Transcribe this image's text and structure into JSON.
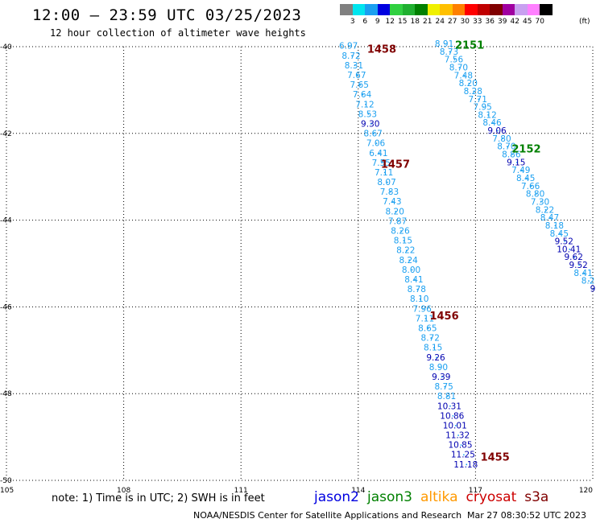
{
  "header": {
    "title": "12:00 — 23:59 UTC 03/25/2023",
    "subtitle": "12 hour collection of altimeter wave heights"
  },
  "legend": {
    "unit": "(ft)",
    "levels": [
      "3",
      "6",
      "9",
      "12",
      "15",
      "18",
      "21",
      "24",
      "27",
      "30",
      "33",
      "36",
      "39",
      "42",
      "45",
      "70"
    ],
    "colors": [
      "#808080",
      "#00e5ee",
      "#1a9ff0",
      "#0000e0",
      "#30d040",
      "#20b030",
      "#008000",
      "#f0f000",
      "#ffc000",
      "#ff8000",
      "#ff0000",
      "#c00000",
      "#800000",
      "#a000a0",
      "#c8a0f0",
      "#ff80ff",
      "#000000"
    ]
  },
  "footer": {
    "note": "note:  1) Time is in UTC;  2) SWH is in feet",
    "missions": [
      {
        "name": "jason2",
        "color": "#0000e0"
      },
      {
        "name": "jason3",
        "color": "#008000"
      },
      {
        "name": "altika",
        "color": "#ff9900"
      },
      {
        "name": "cryosat",
        "color": "#cc0000"
      },
      {
        "name": "s3a",
        "color": "#800000"
      }
    ],
    "credit": "NOAA/NESDIS Center for Satellite Applications and Research",
    "timestamp": "Mar 27 08:30:52 UTC 2023"
  },
  "map": {
    "lat_range": [
      -50,
      -40
    ],
    "lon_range": [
      105,
      120
    ],
    "lat_ticks": [
      "-40",
      "-42",
      "-44",
      "-46",
      "-48",
      "-50"
    ],
    "lon_ticks": [
      "105",
      "108",
      "111",
      "114",
      "117",
      "120"
    ],
    "tracks": [
      {
        "id": "track-1458-1455",
        "start": [
          113.75,
          -40.05
        ],
        "end": [
          116.75,
          -49.7
        ],
        "values": [
          "6.97",
          "8.72",
          "8.31",
          "7.67",
          "7.65",
          "7.64",
          "7.12",
          "8.53",
          "9.30",
          "8.67",
          "7.06",
          "6.41",
          "7.55",
          "7.11",
          "8.07",
          "7.83",
          "7.43",
          "8.20",
          "7.87",
          "8.26",
          "8.15",
          "8.22",
          "8.24",
          "8.00",
          "8.41",
          "8.78",
          "8.10",
          "7.96",
          "7.11",
          "8.65",
          "8.72",
          "8.15",
          "9.26",
          "8.90",
          "9.39",
          "8.75",
          "8.81",
          "10.31",
          "10.86",
          "10.01",
          "11.32",
          "10.85",
          "11.25",
          "11.18"
        ],
        "colors": [
          "c",
          "c",
          "c",
          "c",
          "c",
          "c",
          "c",
          "c",
          "b",
          "c",
          "c",
          "c",
          "c",
          "c",
          "c",
          "c",
          "c",
          "c",
          "c",
          "c",
          "c",
          "c",
          "c",
          "c",
          "c",
          "c",
          "c",
          "c",
          "c",
          "c",
          "c",
          "c",
          "b",
          "c",
          "b",
          "c",
          "c",
          "b",
          "b",
          "b",
          "b",
          "b",
          "b",
          "b"
        ],
        "labels": [
          {
            "text": "1458",
            "lon": 114.6,
            "lat": -40.05,
            "color": "#800000"
          },
          {
            "text": "1457",
            "lon": 114.95,
            "lat": -42.7,
            "color": "#800000"
          },
          {
            "text": "1456",
            "lon": 116.2,
            "lat": -46.2,
            "color": "#800000"
          },
          {
            "text": "1455",
            "lon": 117.5,
            "lat": -49.45,
            "color": "#800000"
          }
        ]
      },
      {
        "id": "track-2151-2152",
        "start": [
          116.2,
          -40.0
        ],
        "end": [
          120.0,
          -45.65
        ],
        "values": [
          "8.91",
          "8.73",
          "7.56",
          "8.70",
          "7.48",
          "8.20",
          "8.28",
          "7.71",
          "7.95",
          "8.12",
          "8.46",
          "9.06",
          "7.80",
          "8.70",
          "8.86",
          "9.15",
          "7.49",
          "8.45",
          "7.66",
          "8.80",
          "7.30",
          "8.22",
          "8.47",
          "8.18",
          "8.45",
          "9.52",
          "10.41",
          "9.62",
          "9.52",
          "8.41",
          "8.2",
          "9"
        ],
        "colors": [
          "c",
          "c",
          "c",
          "c",
          "c",
          "c",
          "c",
          "c",
          "c",
          "c",
          "c",
          "b",
          "c",
          "c",
          "c",
          "b",
          "c",
          "c",
          "c",
          "c",
          "c",
          "c",
          "c",
          "c",
          "c",
          "b",
          "b",
          "b",
          "b",
          "c",
          "c",
          "b"
        ],
        "labels": [
          {
            "text": "2151",
            "lon": 116.85,
            "lat": -39.95,
            "color": "#008000"
          },
          {
            "text": "2152",
            "lon": 118.3,
            "lat": -42.35,
            "color": "#008000"
          }
        ]
      }
    ]
  }
}
